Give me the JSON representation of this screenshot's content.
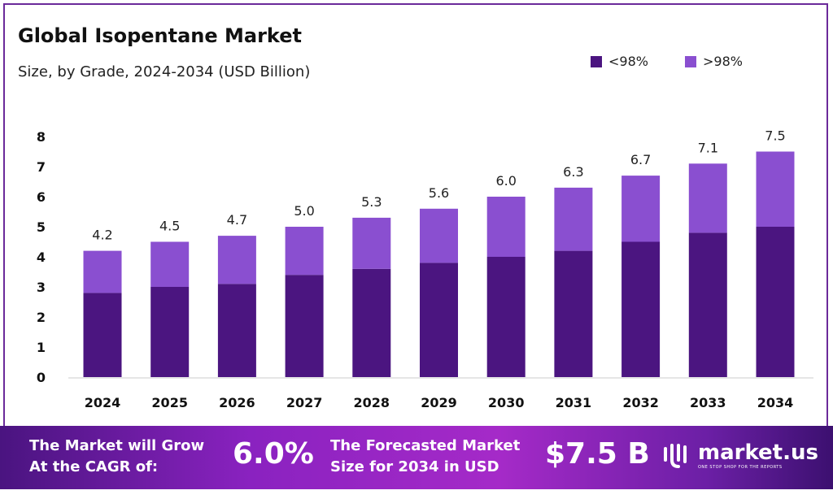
{
  "chart_data": {
    "type": "bar",
    "stacked": true,
    "title": "Global Isopentane Market",
    "subtitle": "Size, by Grade, 2024-2034 (USD Billion)",
    "categories": [
      "2024",
      "2025",
      "2026",
      "2027",
      "2028",
      "2029",
      "2030",
      "2031",
      "2032",
      "2033",
      "2034"
    ],
    "series": [
      {
        "name": "<98%",
        "color": "#4b1580",
        "values": [
          2.8,
          3.0,
          3.1,
          3.4,
          3.6,
          3.8,
          4.0,
          4.2,
          4.5,
          4.8,
          5.0
        ]
      },
      {
        "name": ">98%",
        "color": "#8a4fd0",
        "values": [
          1.4,
          1.5,
          1.6,
          1.6,
          1.7,
          1.8,
          2.0,
          2.1,
          2.2,
          2.3,
          2.5
        ]
      }
    ],
    "totals": [
      "4.2",
      "4.5",
      "4.7",
      "5.0",
      "5.3",
      "5.6",
      "6.0",
      "6.3",
      "6.7",
      "7.1",
      "7.5"
    ],
    "yticks": [
      0,
      1,
      2,
      3,
      4,
      5,
      6,
      7,
      8
    ],
    "ylim": [
      0,
      8
    ],
    "grid": false,
    "legend": "top-right"
  },
  "banner": {
    "cagr_label_1": "The Market will Grow",
    "cagr_label_2": "At the CAGR of:",
    "cagr_value": "6.0%",
    "forecast_label_1": "The Forecasted Market",
    "forecast_label_2": "Size for 2034 in USD",
    "forecast_value": "$7.5 B",
    "logo_name": "market.us",
    "logo_tagline": "ONE STOP SHOP FOR THE REPORTS"
  }
}
